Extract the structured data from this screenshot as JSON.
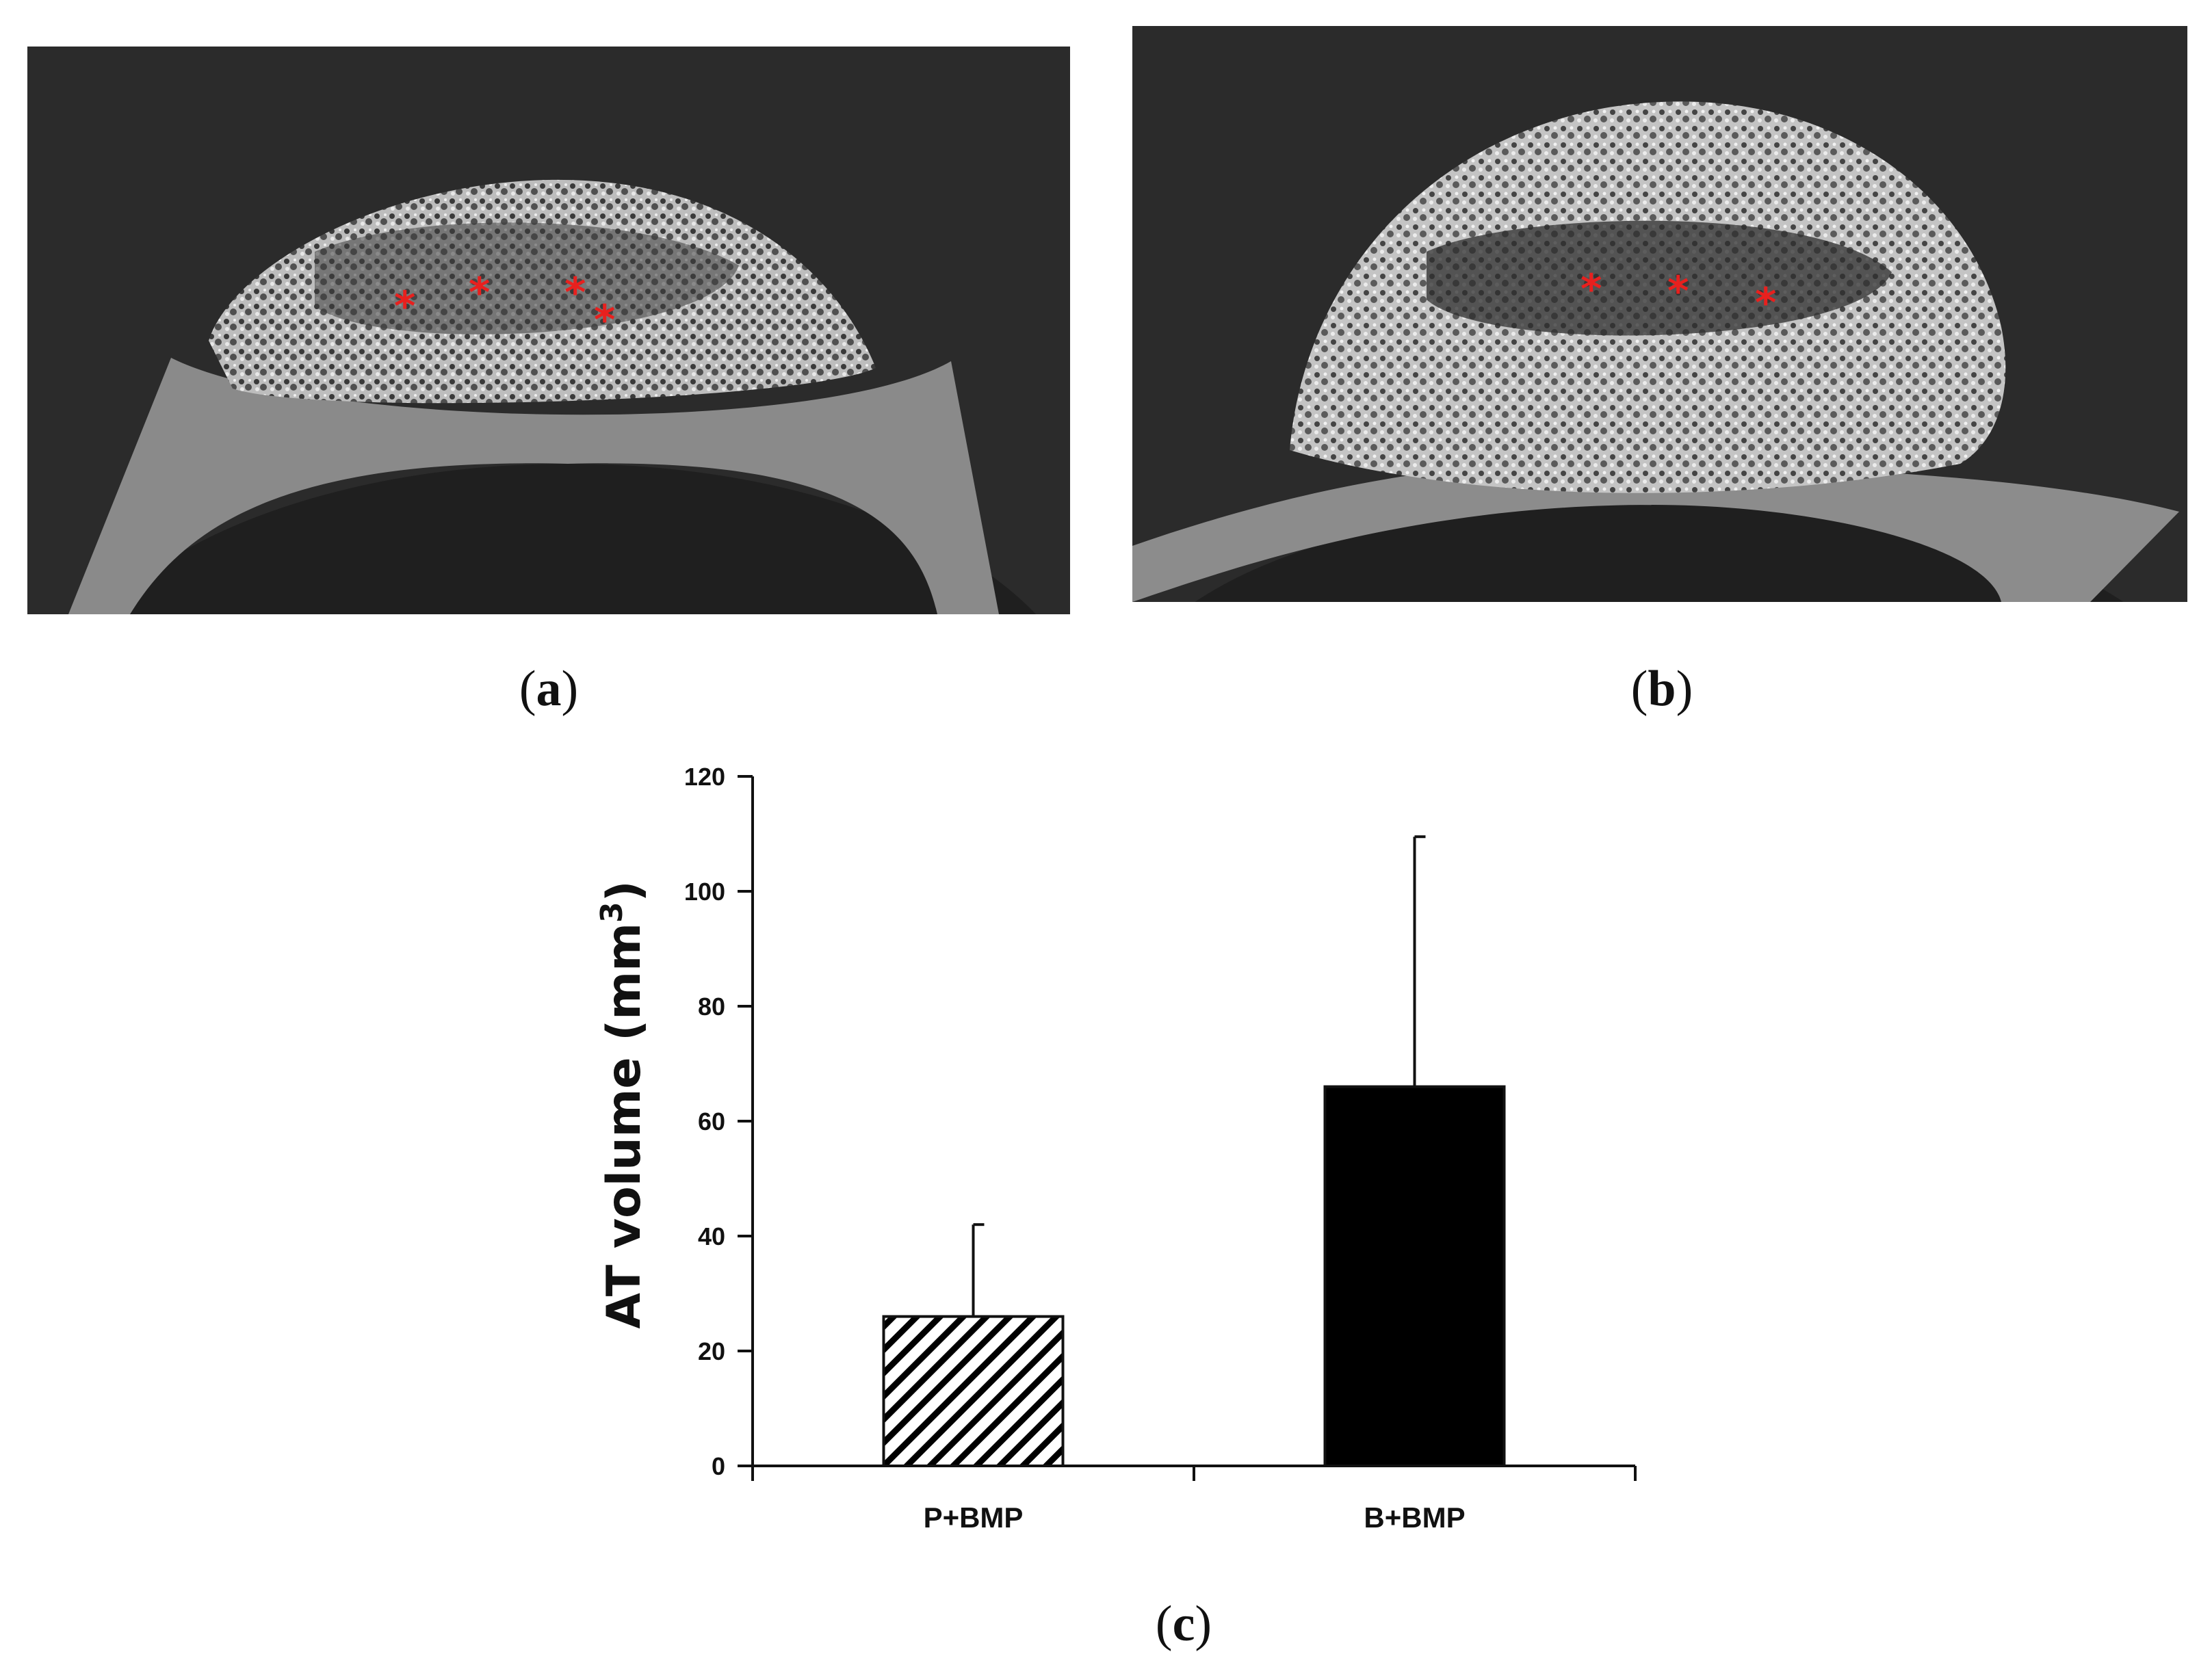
{
  "figure": {
    "panel_a": {
      "label_open": "(",
      "label_letter": "a",
      "label_close": ")",
      "marker": "*"
    },
    "panel_b": {
      "label_open": "(",
      "label_letter": "b",
      "label_close": ")",
      "marker": "*"
    },
    "panel_c": {
      "label_open": "(",
      "label_letter": "c",
      "label_close": ")"
    },
    "marker_color": "#e8201e",
    "scan_background": "#2b2b2b"
  },
  "chart_data": {
    "type": "bar",
    "title": "",
    "categories": [
      "P+BMP",
      "B+BMP"
    ],
    "series": [
      {
        "values": [
          26,
          66
        ],
        "errors": [
          16,
          43.5
        ]
      }
    ],
    "bar_styles": [
      "hatched",
      "solid"
    ],
    "bar_colors": [
      "#ffffff",
      "#000000"
    ],
    "ylabel": "AT volume (mm³)",
    "ylabel_main": "AT volume (mm",
    "ylabel_sup": "3",
    "ylabel_tail": ")",
    "ylim": [
      0,
      120
    ],
    "yticks": [
      0,
      20,
      40,
      60,
      80,
      100,
      120
    ],
    "grid": false,
    "legend": "none"
  }
}
